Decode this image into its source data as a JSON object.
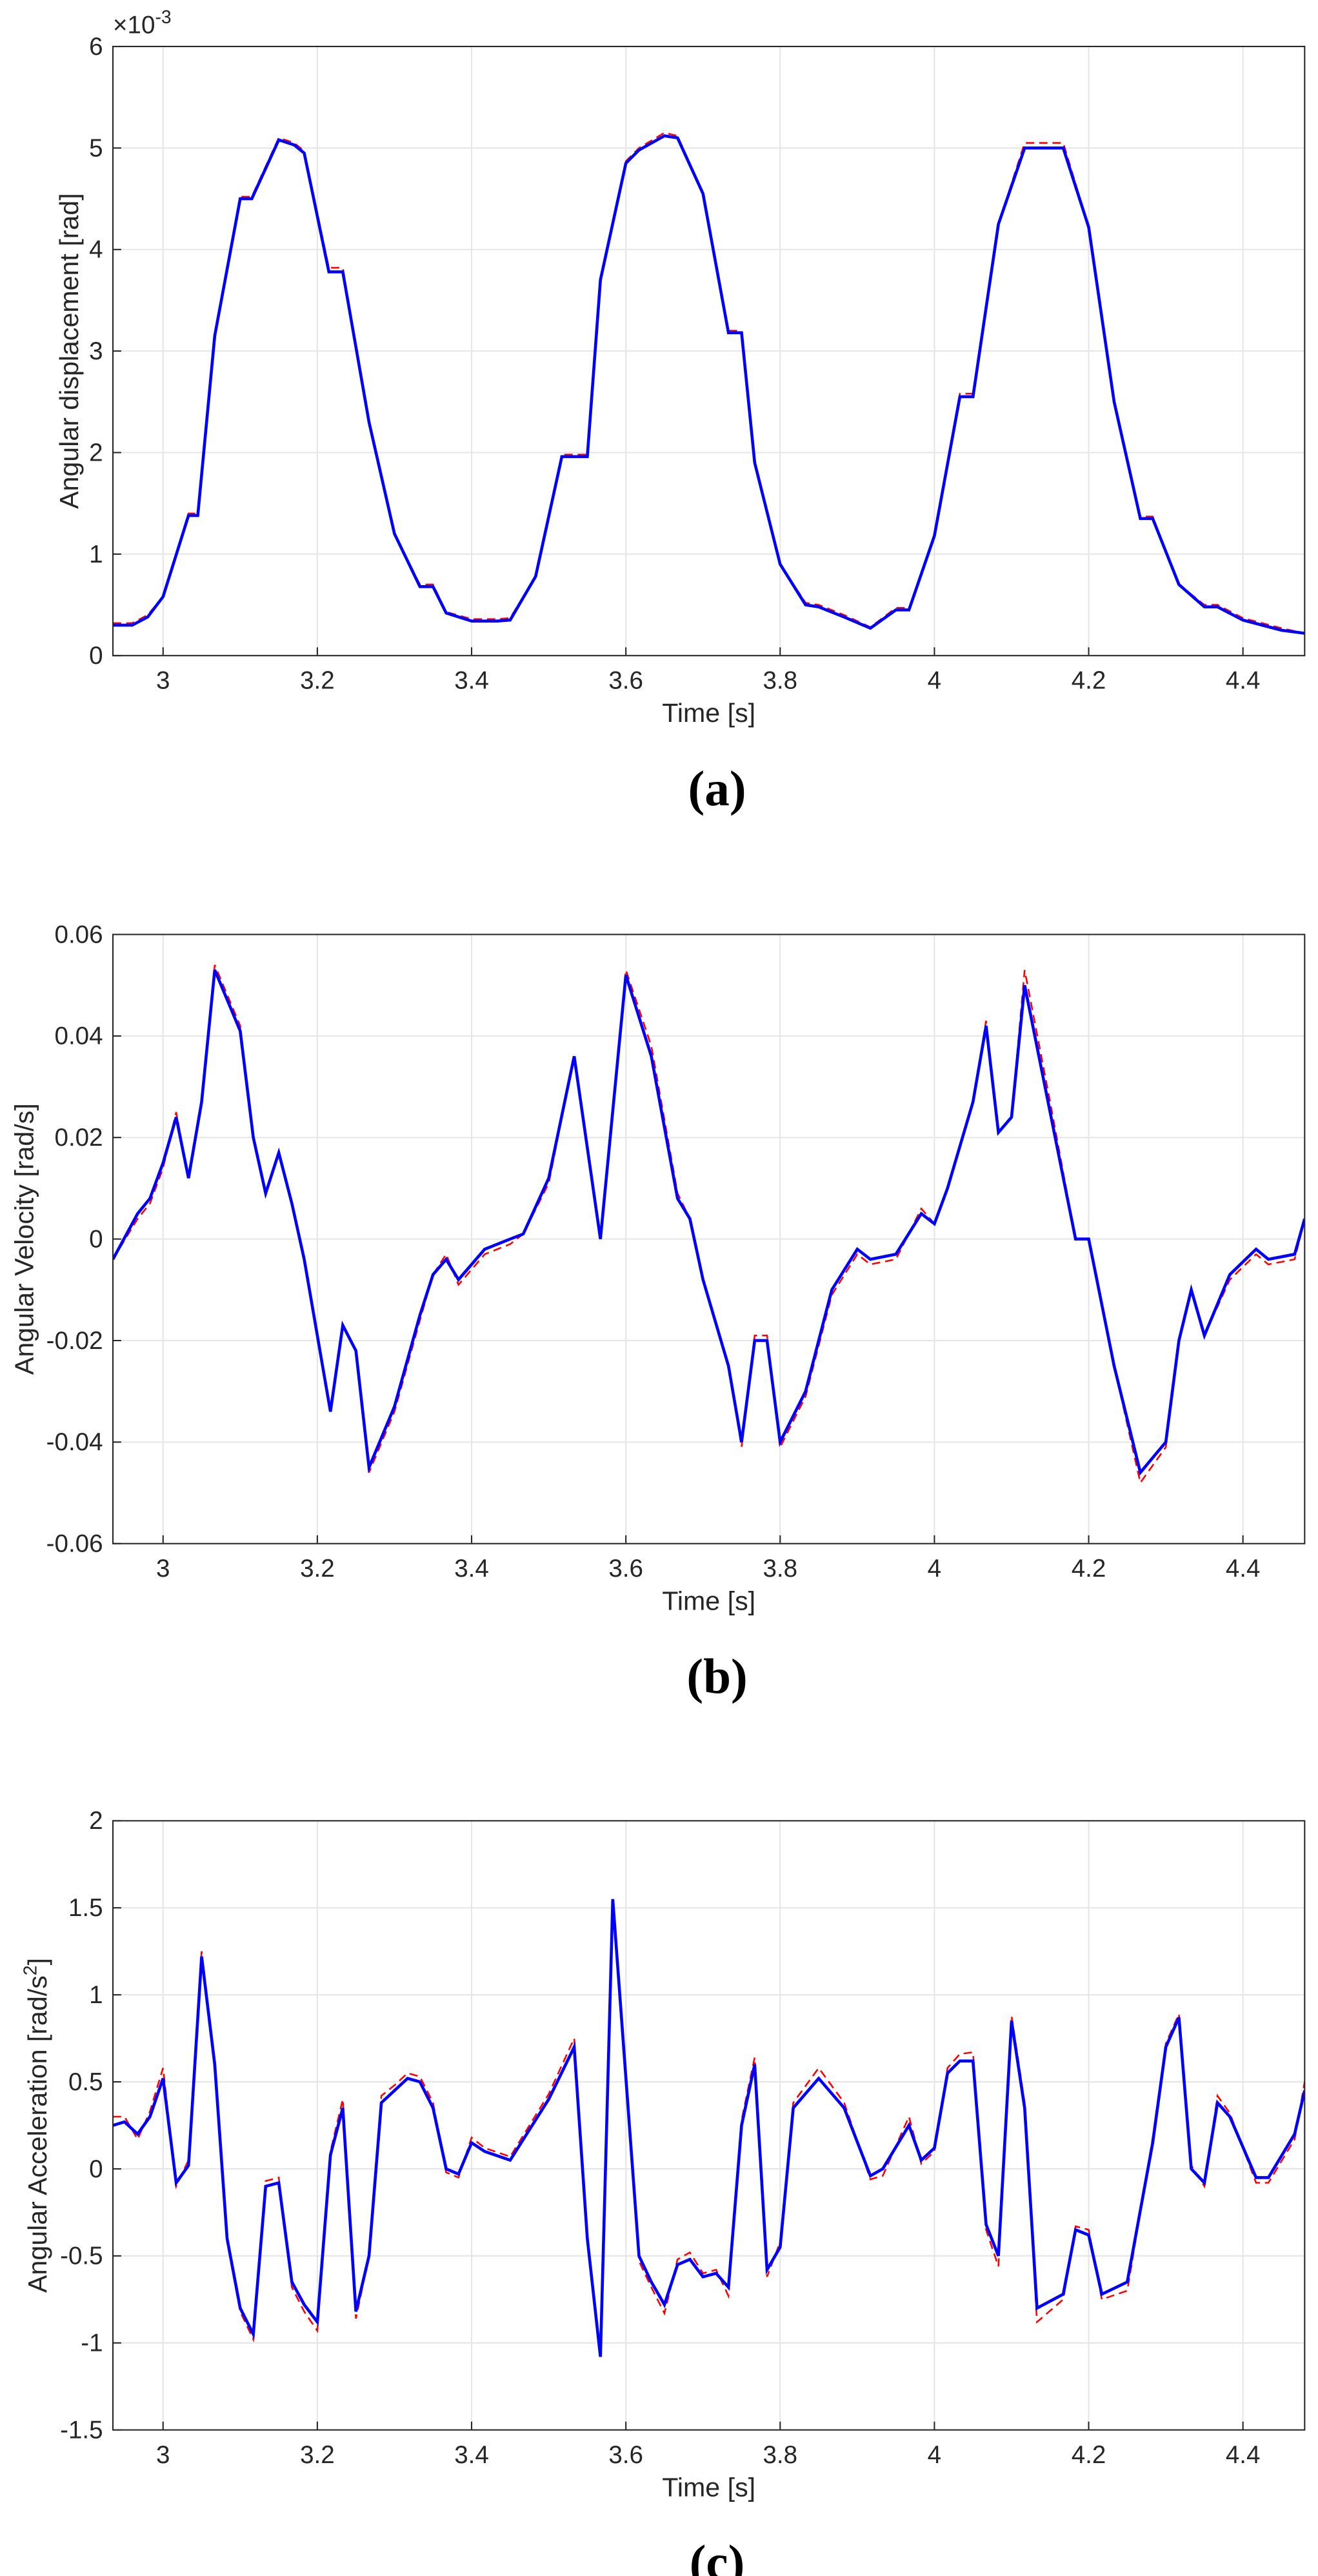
{
  "chart_data": [
    {
      "type": "line",
      "caption": "(a)",
      "xlabel": "Time [s]",
      "ylabel": "Angular displacement [rad]",
      "y_exponent": {
        "base": "×10",
        "power": "-3"
      },
      "xlim": [
        2.935,
        4.48
      ],
      "ylim": [
        0,
        6
      ],
      "xticks": [
        3,
        3.2,
        3.4,
        3.6,
        3.8,
        4,
        4.2,
        4.4
      ],
      "yticks": [
        0,
        1,
        2,
        3,
        4,
        5,
        6
      ],
      "grid": true,
      "x": [
        2.935,
        2.96,
        2.98,
        3.0,
        3.033,
        3.045,
        3.067,
        3.1,
        3.115,
        3.15,
        3.17,
        3.183,
        3.215,
        3.233,
        3.267,
        3.3,
        3.333,
        3.35,
        3.367,
        3.4,
        3.433,
        3.45,
        3.483,
        3.517,
        3.55,
        3.567,
        3.6,
        3.617,
        3.65,
        3.667,
        3.7,
        3.733,
        3.75,
        3.767,
        3.8,
        3.833,
        3.85,
        3.883,
        3.917,
        3.95,
        3.967,
        4.0,
        4.033,
        4.05,
        4.083,
        4.117,
        4.15,
        4.167,
        4.2,
        4.233,
        4.267,
        4.283,
        4.317,
        4.35,
        4.367,
        4.4,
        4.45,
        4.48
      ],
      "series": [
        {
          "color": "#ff0000",
          "dash": true,
          "values": [
            0.32,
            0.32,
            0.4,
            0.58,
            1.4,
            1.4,
            3.15,
            4.52,
            4.52,
            5.1,
            5.05,
            4.97,
            3.82,
            3.82,
            2.3,
            1.2,
            0.7,
            0.7,
            0.43,
            0.36,
            0.36,
            0.37,
            0.78,
            1.98,
            1.98,
            3.7,
            4.87,
            5.0,
            5.15,
            5.12,
            4.55,
            3.2,
            3.2,
            1.9,
            0.9,
            0.52,
            0.5,
            0.4,
            0.28,
            0.47,
            0.47,
            1.18,
            2.58,
            2.58,
            4.25,
            5.05,
            5.05,
            5.05,
            4.22,
            2.5,
            1.37,
            1.37,
            0.7,
            0.5,
            0.5,
            0.37,
            0.27,
            0.22
          ]
        },
        {
          "color": "#0000ff",
          "dash": false,
          "values": [
            0.3,
            0.3,
            0.38,
            0.58,
            1.38,
            1.38,
            3.15,
            4.5,
            4.5,
            5.08,
            5.03,
            4.95,
            3.78,
            3.78,
            2.3,
            1.2,
            0.68,
            0.68,
            0.42,
            0.34,
            0.34,
            0.35,
            0.78,
            1.96,
            1.96,
            3.7,
            4.85,
            4.98,
            5.12,
            5.1,
            4.55,
            3.18,
            3.18,
            1.9,
            0.9,
            0.5,
            0.48,
            0.38,
            0.27,
            0.45,
            0.45,
            1.18,
            2.55,
            2.55,
            4.25,
            5.0,
            5.0,
            5.0,
            4.22,
            2.5,
            1.35,
            1.35,
            0.7,
            0.48,
            0.48,
            0.35,
            0.25,
            0.22
          ]
        }
      ]
    },
    {
      "type": "line",
      "caption": "(b)",
      "xlabel": "Time [s]",
      "ylabel": "Angular Velocity [rad/s]",
      "xlim": [
        2.935,
        4.48
      ],
      "ylim": [
        -0.06,
        0.06
      ],
      "xticks": [
        3,
        3.2,
        3.4,
        3.6,
        3.8,
        4,
        4.2,
        4.4
      ],
      "yticks": [
        -0.06,
        -0.04,
        -0.02,
        0,
        0.02,
        0.04,
        0.06
      ],
      "grid": true,
      "x": [
        2.935,
        2.967,
        2.983,
        3.0,
        3.017,
        3.033,
        3.05,
        3.067,
        3.1,
        3.117,
        3.133,
        3.15,
        3.167,
        3.183,
        3.217,
        3.233,
        3.25,
        3.267,
        3.3,
        3.333,
        3.35,
        3.367,
        3.383,
        3.4,
        3.417,
        3.45,
        3.467,
        3.5,
        3.533,
        3.567,
        3.6,
        3.633,
        3.667,
        3.683,
        3.7,
        3.733,
        3.75,
        3.767,
        3.783,
        3.8,
        3.833,
        3.867,
        3.9,
        3.917,
        3.95,
        3.983,
        4.0,
        4.017,
        4.05,
        4.067,
        4.083,
        4.1,
        4.117,
        4.15,
        4.183,
        4.2,
        4.233,
        4.267,
        4.3,
        4.317,
        4.333,
        4.35,
        4.383,
        4.417,
        4.433,
        4.467,
        4.48
      ],
      "series": [
        {
          "color": "#ff0000",
          "dash": true,
          "values": [
            -0.004,
            0.004,
            0.007,
            0.014,
            0.025,
            0.012,
            0.027,
            0.054,
            0.042,
            0.02,
            0.009,
            0.017,
            0.007,
            -0.004,
            -0.034,
            -0.017,
            -0.022,
            -0.046,
            -0.034,
            -0.016,
            -0.007,
            -0.003,
            -0.009,
            -0.006,
            -0.003,
            -0.001,
            0.001,
            0.011,
            0.036,
            0,
            0.053,
            0.038,
            0.009,
            0.004,
            -0.008,
            -0.025,
            -0.041,
            -0.019,
            -0.019,
            -0.041,
            -0.031,
            -0.011,
            -0.003,
            -0.005,
            -0.004,
            0.006,
            0.003,
            0.01,
            0.027,
            0.043,
            0.021,
            0.024,
            0.053,
            0.027,
            0,
            0,
            -0.025,
            -0.048,
            -0.041,
            -0.02,
            -0.01,
            -0.019,
            -0.008,
            -0.003,
            -0.005,
            -0.004,
            0.004
          ]
        },
        {
          "color": "#0000ff",
          "dash": false,
          "values": [
            -0.004,
            0.005,
            0.008,
            0.015,
            0.024,
            0.012,
            0.027,
            0.053,
            0.041,
            0.02,
            0.009,
            0.017,
            0.007,
            -0.004,
            -0.034,
            -0.017,
            -0.022,
            -0.045,
            -0.033,
            -0.015,
            -0.007,
            -0.004,
            -0.008,
            -0.005,
            -0.002,
            0,
            0.001,
            0.012,
            0.036,
            0,
            0.052,
            0.036,
            0.008,
            0.004,
            -0.008,
            -0.025,
            -0.04,
            -0.02,
            -0.02,
            -0.04,
            -0.03,
            -0.01,
            -0.002,
            -0.004,
            -0.003,
            0.005,
            0.003,
            0.01,
            0.027,
            0.042,
            0.021,
            0.024,
            0.05,
            0.025,
            0,
            0,
            -0.025,
            -0.046,
            -0.04,
            -0.02,
            -0.01,
            -0.019,
            -0.007,
            -0.002,
            -0.004,
            -0.003,
            0.004
          ]
        }
      ]
    },
    {
      "type": "line",
      "caption": "(c)",
      "xlabel": "Time [s]",
      "ylabel": "Angular Acceleration [rad/s",
      "ylabel_superscript": "2",
      "ylabel_suffix": "]",
      "xlim": [
        2.935,
        4.48
      ],
      "ylim": [
        -1.5,
        2
      ],
      "xticks": [
        3,
        3.2,
        3.4,
        3.6,
        3.8,
        4,
        4.2,
        4.4
      ],
      "yticks": [
        -1.5,
        -1,
        -0.5,
        0,
        0.5,
        1,
        1.5,
        2
      ],
      "grid": true,
      "x": [
        2.935,
        2.95,
        2.967,
        2.983,
        3.0,
        3.017,
        3.033,
        3.05,
        3.067,
        3.083,
        3.1,
        3.117,
        3.133,
        3.15,
        3.167,
        3.183,
        3.2,
        3.217,
        3.233,
        3.25,
        3.267,
        3.283,
        3.3,
        3.317,
        3.333,
        3.35,
        3.367,
        3.383,
        3.4,
        3.417,
        3.45,
        3.5,
        3.533,
        3.55,
        3.567,
        3.583,
        3.617,
        3.633,
        3.65,
        3.667,
        3.683,
        3.7,
        3.717,
        3.733,
        3.75,
        3.767,
        3.783,
        3.8,
        3.817,
        3.85,
        3.883,
        3.917,
        3.933,
        3.967,
        3.983,
        4.0,
        4.017,
        4.033,
        4.05,
        4.067,
        4.083,
        4.1,
        4.117,
        4.133,
        4.167,
        4.183,
        4.2,
        4.217,
        4.25,
        4.283,
        4.3,
        4.317,
        4.333,
        4.35,
        4.367,
        4.383,
        4.417,
        4.433,
        4.467,
        4.48
      ],
      "series": [
        {
          "color": "#ff0000",
          "dash": true,
          "values": [
            0.3,
            0.3,
            0.17,
            0.33,
            0.58,
            -0.1,
            0.05,
            1.25,
            0.62,
            -0.42,
            -0.82,
            -0.98,
            -0.07,
            -0.05,
            -0.68,
            -0.82,
            -0.93,
            0.1,
            0.4,
            -0.86,
            -0.5,
            0.42,
            0.48,
            0.55,
            0.53,
            0.38,
            -0.02,
            -0.05,
            0.18,
            0.12,
            0.07,
            0.43,
            0.75,
            -0.4,
            -1.08,
            1.55,
            -0.53,
            -0.68,
            -0.83,
            -0.52,
            -0.48,
            -0.6,
            -0.58,
            -0.73,
            0.28,
            0.64,
            -0.62,
            -0.42,
            0.38,
            0.58,
            0.38,
            -0.06,
            -0.04,
            0.3,
            0.03,
            0.1,
            0.58,
            0.66,
            0.67,
            -0.35,
            -0.56,
            0.88,
            0.38,
            -0.88,
            -0.75,
            -0.33,
            -0.35,
            -0.75,
            -0.7,
            0.18,
            0.72,
            0.89,
            0.02,
            -0.1,
            0.42,
            0.32,
            -0.08,
            -0.08,
            0.17,
            0.5
          ]
        },
        {
          "color": "#0000ff",
          "dash": false,
          "values": [
            0.25,
            0.27,
            0.2,
            0.3,
            0.52,
            -0.08,
            0.02,
            1.22,
            0.6,
            -0.4,
            -0.8,
            -0.95,
            -0.1,
            -0.08,
            -0.65,
            -0.78,
            -0.88,
            0.08,
            0.35,
            -0.82,
            -0.5,
            0.38,
            0.45,
            0.52,
            0.5,
            0.35,
            0,
            -0.03,
            0.15,
            0.1,
            0.05,
            0.4,
            0.7,
            -0.4,
            -1.08,
            1.55,
            -0.5,
            -0.65,
            -0.78,
            -0.55,
            -0.52,
            -0.62,
            -0.6,
            -0.68,
            0.25,
            0.6,
            -0.58,
            -0.45,
            0.35,
            0.52,
            0.35,
            -0.04,
            0,
            0.25,
            0.05,
            0.12,
            0.55,
            0.62,
            0.62,
            -0.32,
            -0.5,
            0.85,
            0.35,
            -0.8,
            -0.72,
            -0.35,
            -0.38,
            -0.72,
            -0.65,
            0.15,
            0.7,
            0.87,
            0,
            -0.08,
            0.38,
            0.3,
            -0.05,
            -0.05,
            0.2,
            0.45
          ]
        }
      ]
    }
  ]
}
